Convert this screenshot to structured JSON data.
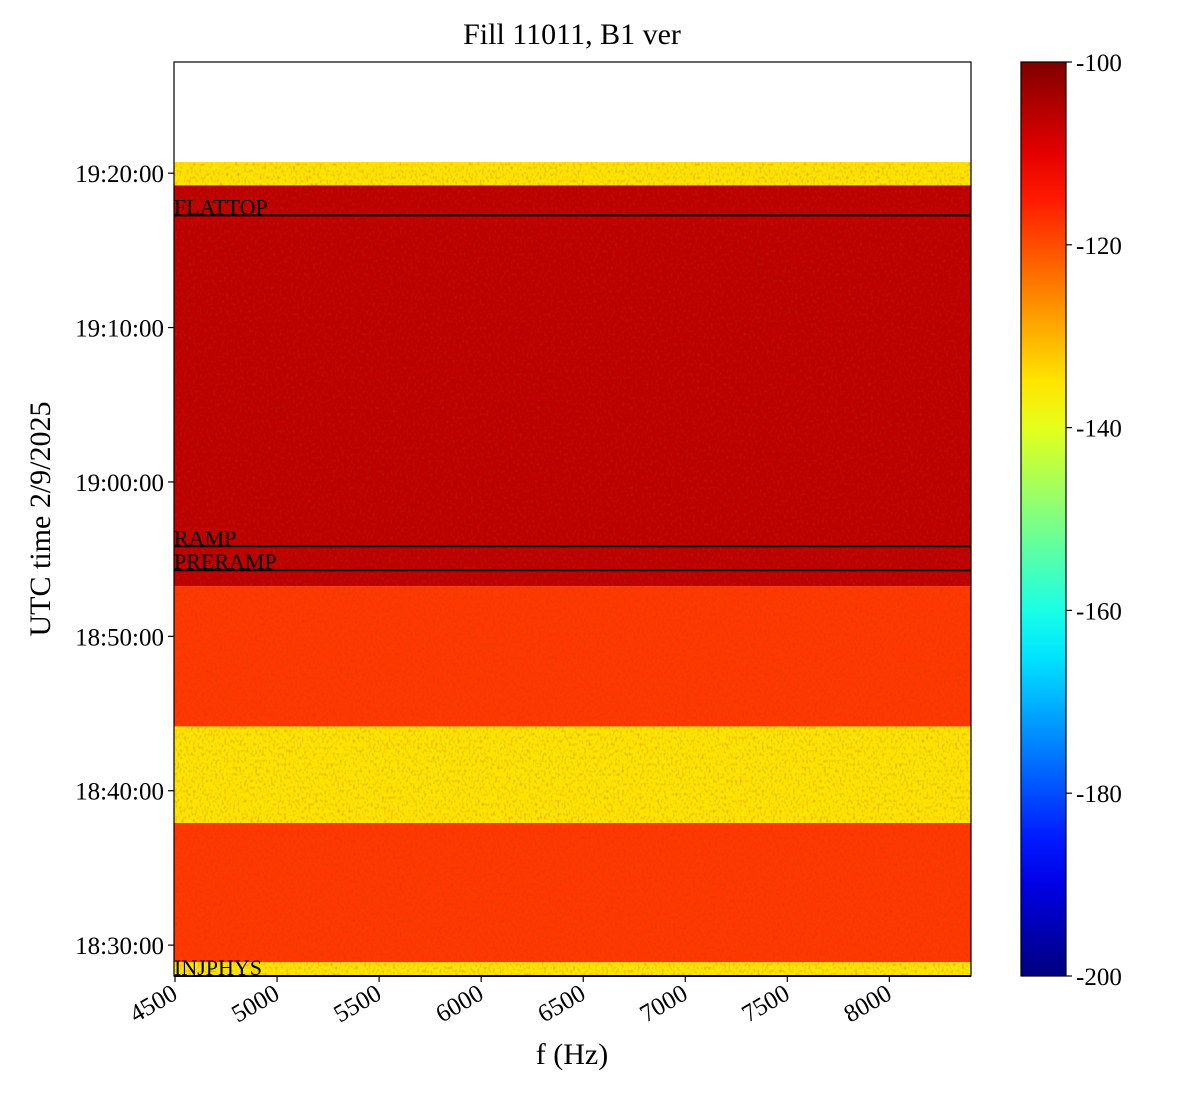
{
  "chart_data": {
    "type": "spectrogram",
    "title": "Fill 11011, B1 ver",
    "xlabel": "f (Hz)",
    "ylabel": "UTC time 2/9/2025",
    "xlim": [
      4495,
      8400
    ],
    "xticks": [
      4500,
      5000,
      5500,
      6000,
      6500,
      7000,
      7500,
      8000
    ],
    "ylim": [
      66480,
      70032
    ],
    "yticks": [
      {
        "value": 66600,
        "label": "18:30:00"
      },
      {
        "value": 67200,
        "label": "18:40:00"
      },
      {
        "value": 67800,
        "label": "18:50:00"
      },
      {
        "value": 68400,
        "label": "19:00:00"
      },
      {
        "value": 69000,
        "label": "19:10:00"
      },
      {
        "value": 69600,
        "label": "19:20:00"
      }
    ],
    "colormap": "jet",
    "clim": [
      -200,
      -100
    ],
    "cticks": [
      -200,
      -180,
      -160,
      -140,
      -120,
      -100
    ],
    "bands": [
      {
        "start": 66480,
        "end": 66534,
        "level": -135
      },
      {
        "start": 66534,
        "end": 67075,
        "level": -118
      },
      {
        "start": 67075,
        "end": 67450,
        "level": -135
      },
      {
        "start": 67450,
        "end": 67995,
        "level": -118
      },
      {
        "start": 67995,
        "end": 69553,
        "level": -106
      },
      {
        "start": 69553,
        "end": 69643,
        "level": -135
      }
    ],
    "markers": [
      {
        "label": "FLATTOP",
        "value": 69436
      },
      {
        "label": "RAMP",
        "value": 68150
      },
      {
        "label": "PRERAMP",
        "value": 68057
      },
      {
        "label": "INJPHYS",
        "value": 66480
      }
    ]
  }
}
